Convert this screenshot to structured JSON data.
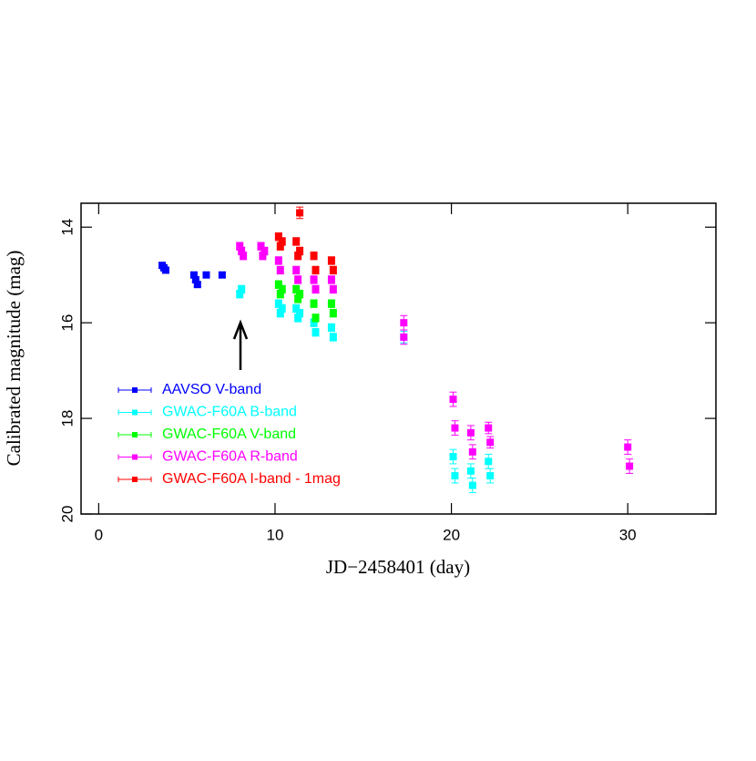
{
  "chart_data": {
    "type": "scatter",
    "xlabel": "JD−2458401 (day)",
    "ylabel": "Calibrated magnitude (mag)",
    "xlim": [
      -1,
      35
    ],
    "ylim": [
      20,
      13.5
    ],
    "xticks": [
      0,
      10,
      20,
      30
    ],
    "yticks": [
      14,
      16,
      18,
      20
    ],
    "legend": "lower left",
    "series": [
      {
        "name": "AAVSO V-band",
        "color": "#0000ff",
        "x": [
          3.6,
          3.7,
          3.8,
          5.4,
          5.5,
          5.6,
          6.1,
          7.0
        ],
        "values": [
          14.8,
          14.85,
          14.9,
          15.0,
          15.1,
          15.2,
          15.0,
          15.0
        ],
        "errors": [
          0.05,
          0.05,
          0.05,
          0.05,
          0.05,
          0.05,
          0.05,
          0.05
        ]
      },
      {
        "name": "GWAC-F60A B-band",
        "color": "#00ffff",
        "x": [
          8.0,
          8.1,
          10.2,
          10.3,
          10.4,
          11.2,
          11.3,
          11.4,
          12.2,
          12.3,
          13.2,
          13.3,
          17.3,
          20.1,
          20.2,
          21.1,
          21.2,
          22.1,
          22.2
        ],
        "values": [
          15.4,
          15.3,
          15.6,
          15.8,
          15.7,
          15.7,
          15.9,
          15.8,
          16.0,
          16.2,
          16.1,
          16.3,
          16.3,
          18.8,
          19.2,
          19.1,
          19.4,
          18.9,
          19.2
        ],
        "errors": [
          0.08,
          0.08,
          0.08,
          0.08,
          0.08,
          0.08,
          0.08,
          0.08,
          0.08,
          0.08,
          0.08,
          0.08,
          0.12,
          0.15,
          0.15,
          0.15,
          0.15,
          0.15,
          0.15
        ]
      },
      {
        "name": "GWAC-F60A V-band",
        "color": "#00ff00",
        "x": [
          10.2,
          10.3,
          10.4,
          11.2,
          11.3,
          11.4,
          12.2,
          12.3,
          13.2,
          13.3
        ],
        "values": [
          15.2,
          15.4,
          15.3,
          15.3,
          15.5,
          15.4,
          15.6,
          15.9,
          15.6,
          15.8
        ],
        "errors": [
          0.08,
          0.08,
          0.08,
          0.08,
          0.08,
          0.08,
          0.08,
          0.08,
          0.08,
          0.08
        ]
      },
      {
        "name": "GWAC-F60A R-band",
        "color": "#ff00ff",
        "x": [
          8.0,
          8.1,
          8.2,
          9.2,
          9.3,
          9.4,
          10.2,
          10.3,
          11.2,
          11.3,
          12.2,
          12.3,
          13.2,
          13.3,
          17.3,
          17.3,
          20.1,
          20.2,
          21.1,
          21.2,
          22.1,
          22.2,
          30.0,
          30.1
        ],
        "values": [
          14.4,
          14.5,
          14.6,
          14.4,
          14.6,
          14.5,
          14.7,
          14.9,
          14.9,
          15.1,
          15.1,
          15.3,
          15.1,
          15.3,
          16.0,
          16.3,
          17.6,
          18.2,
          18.3,
          18.7,
          18.2,
          18.5,
          18.6,
          19.0
        ],
        "errors": [
          0.08,
          0.08,
          0.08,
          0.08,
          0.08,
          0.08,
          0.08,
          0.08,
          0.08,
          0.08,
          0.08,
          0.08,
          0.08,
          0.08,
          0.15,
          0.15,
          0.15,
          0.15,
          0.15,
          0.15,
          0.12,
          0.12,
          0.15,
          0.15
        ]
      },
      {
        "name": "GWAC-F60A I-band - 1mag",
        "color": "#ff0000",
        "x": [
          10.2,
          10.3,
          10.4,
          11.2,
          11.3,
          11.4,
          11.4,
          12.2,
          12.3,
          13.2,
          13.3
        ],
        "values": [
          14.2,
          14.4,
          14.3,
          14.3,
          14.6,
          14.5,
          13.7,
          14.6,
          14.9,
          14.7,
          14.9
        ],
        "errors": [
          0.08,
          0.08,
          0.08,
          0.08,
          0.08,
          0.08,
          0.12,
          0.08,
          0.08,
          0.08,
          0.08
        ]
      }
    ]
  }
}
